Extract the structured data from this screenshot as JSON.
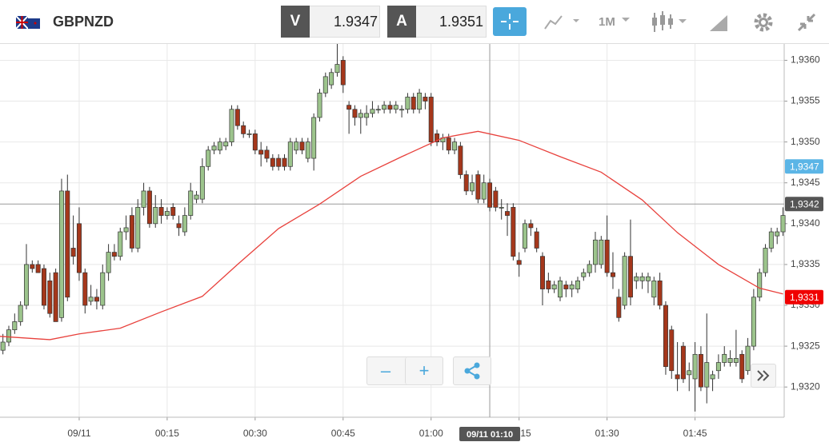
{
  "header": {
    "symbol": "GBPNZD",
    "bid": {
      "letter": "V",
      "price": 1.9347
    },
    "ask": {
      "letter": "A",
      "price": 1.9351
    },
    "timeframe": "1M"
  },
  "chart_data": {
    "type": "candlestick",
    "up_color": "#9cc48c",
    "down_color": "#a5371b",
    "grid": true,
    "xlim": [
      -13.5,
      120.2
    ],
    "ylim": [
      1.93163,
      1.9362
    ],
    "xticks": [
      {
        "value": 0,
        "label": "09/11"
      },
      {
        "value": 15,
        "label": "00:15"
      },
      {
        "value": 30,
        "label": "00:30"
      },
      {
        "value": 45,
        "label": "00:45"
      },
      {
        "value": 60,
        "label": "01:00"
      },
      {
        "value": 75,
        "label": "01:15"
      },
      {
        "value": 90,
        "label": "01:30"
      },
      {
        "value": 105,
        "label": "01:45"
      }
    ],
    "yticks": [
      {
        "value": 1.932,
        "label": "1,9320"
      },
      {
        "value": 1.9325,
        "label": "1,9325"
      },
      {
        "value": 1.933,
        "label": "1,9330"
      },
      {
        "value": 1.9335,
        "label": "1,9335"
      },
      {
        "value": 1.934,
        "label": "1,9340"
      },
      {
        "value": 1.9345,
        "label": "1,9345"
      },
      {
        "value": 1.935,
        "label": "1,9350"
      },
      {
        "value": 1.9355,
        "label": "1,9355"
      },
      {
        "value": 1.936,
        "label": "1,9360"
      }
    ],
    "x": [
      -13,
      -12,
      -11,
      -10,
      -9,
      -8,
      -7,
      -6,
      -5,
      -4,
      -3,
      -2,
      -1,
      0,
      1,
      2,
      3,
      4,
      5,
      6,
      7,
      8,
      9,
      10,
      11,
      12,
      13,
      14,
      15,
      16,
      17,
      18,
      19,
      20,
      21,
      22,
      23,
      24,
      25,
      26,
      27,
      28,
      29,
      30,
      31,
      32,
      33,
      34,
      35,
      36,
      37,
      38,
      39,
      40,
      41,
      42,
      43,
      44,
      45,
      46,
      47,
      48,
      49,
      50,
      51,
      52,
      53,
      54,
      55,
      56,
      57,
      58,
      59,
      60,
      61,
      62,
      63,
      64,
      65,
      66,
      67,
      68,
      69,
      70,
      71,
      72,
      73,
      74,
      75,
      76,
      77,
      78,
      79,
      80,
      81,
      82,
      83,
      84,
      85,
      86,
      87,
      88,
      89,
      90,
      91,
      92,
      93,
      94,
      95,
      96,
      97,
      98,
      99,
      100,
      101,
      102,
      103,
      104,
      105,
      106,
      107,
      108,
      109,
      110,
      111,
      112,
      113,
      114,
      115,
      116,
      117,
      118,
      119,
      120
    ],
    "candles": [
      [
        1.93245,
        1.93265,
        1.9324,
        1.93255
      ],
      [
        1.93255,
        1.93275,
        1.9325,
        1.9327
      ],
      [
        1.9327,
        1.9329,
        1.93265,
        1.9328
      ],
      [
        1.9328,
        1.93305,
        1.93275,
        1.933
      ],
      [
        1.933,
        1.93375,
        1.93295,
        1.9335
      ],
      [
        1.9335,
        1.93355,
        1.9334,
        1.93345
      ],
      [
        1.9335,
        1.93355,
        1.9334,
        1.9334
      ],
      [
        1.93345,
        1.9335,
        1.93295,
        1.933
      ],
      [
        1.9333,
        1.9334,
        1.93285,
        1.9329
      ],
      [
        1.9334,
        1.93345,
        1.9328,
        1.9328
      ],
      [
        1.93285,
        1.93455,
        1.9328,
        1.9344
      ],
      [
        1.9344,
        1.9346,
        1.93305,
        1.9331
      ],
      [
        1.9337,
        1.9341,
        1.9335,
        1.9336
      ],
      [
        1.934,
        1.9342,
        1.9333,
        1.9334
      ],
      [
        1.9334,
        1.93345,
        1.9329,
        1.933
      ],
      [
        1.93305,
        1.93325,
        1.933,
        1.9331
      ],
      [
        1.9331,
        1.9332,
        1.93295,
        1.93305
      ],
      [
        1.933,
        1.9335,
        1.93295,
        1.9334
      ],
      [
        1.9334,
        1.93375,
        1.9333,
        1.93365
      ],
      [
        1.93365,
        1.93375,
        1.93355,
        1.9336
      ],
      [
        1.9336,
        1.93395,
        1.93355,
        1.9339
      ],
      [
        1.9339,
        1.9341,
        1.9338,
        1.93395
      ],
      [
        1.9341,
        1.9342,
        1.93365,
        1.9337
      ],
      [
        1.9337,
        1.9343,
        1.93365,
        1.9342
      ],
      [
        1.9342,
        1.9345,
        1.9341,
        1.9344
      ],
      [
        1.9344,
        1.93445,
        1.93395,
        1.934
      ],
      [
        1.934,
        1.93435,
        1.93395,
        1.9342
      ],
      [
        1.9342,
        1.9343,
        1.934,
        1.9341
      ],
      [
        1.9341,
        1.9342,
        1.93405,
        1.93415
      ],
      [
        1.9342,
        1.93425,
        1.93405,
        1.9341
      ],
      [
        1.934,
        1.9341,
        1.93385,
        1.93395
      ],
      [
        1.9339,
        1.9342,
        1.93385,
        1.9341
      ],
      [
        1.9341,
        1.9345,
        1.93405,
        1.9344
      ],
      [
        1.9343,
        1.9344,
        1.93425,
        1.93435
      ],
      [
        1.9343,
        1.9348,
        1.93425,
        1.9347
      ],
      [
        1.9347,
        1.93495,
        1.93465,
        1.9349
      ],
      [
        1.9349,
        1.935,
        1.93485,
        1.93495
      ],
      [
        1.9349,
        1.93505,
        1.93485,
        1.935
      ],
      [
        1.93495,
        1.93505,
        1.9349,
        1.935
      ],
      [
        1.935,
        1.93545,
        1.93495,
        1.9354
      ],
      [
        1.9354,
        1.93545,
        1.93515,
        1.9352
      ],
      [
        1.9352,
        1.93525,
        1.93505,
        1.9351
      ],
      [
        1.9351,
        1.93515,
        1.93505,
        1.9351
      ],
      [
        1.9351,
        1.93515,
        1.93485,
        1.9349
      ],
      [
        1.9349,
        1.935,
        1.9347,
        1.93485
      ],
      [
        1.9349,
        1.93495,
        1.93475,
        1.9348
      ],
      [
        1.9348,
        1.93485,
        1.93465,
        1.9347
      ],
      [
        1.9348,
        1.93485,
        1.93465,
        1.9347
      ],
      [
        1.9348,
        1.93485,
        1.93465,
        1.9347
      ],
      [
        1.9347,
        1.93505,
        1.93465,
        1.935
      ],
      [
        1.9349,
        1.93505,
        1.93485,
        1.935
      ],
      [
        1.935,
        1.93505,
        1.93485,
        1.9349
      ],
      [
        1.9348,
        1.93505,
        1.93475,
        1.935
      ],
      [
        1.9348,
        1.93535,
        1.93465,
        1.9353
      ],
      [
        1.9353,
        1.93565,
        1.93525,
        1.9356
      ],
      [
        1.9356,
        1.93585,
        1.93555,
        1.9358
      ],
      [
        1.9357,
        1.9359,
        1.93565,
        1.93585
      ],
      [
        1.93585,
        1.9362,
        1.9358,
        1.93595
      ],
      [
        1.936,
        1.93605,
        1.9356,
        1.9357
      ],
      [
        1.93545,
        1.9355,
        1.9351,
        1.9354
      ],
      [
        1.9354,
        1.93545,
        1.9352,
        1.9353
      ],
      [
        1.9353,
        1.9354,
        1.9351,
        1.93535
      ],
      [
        1.9353,
        1.93545,
        1.9352,
        1.93535
      ],
      [
        1.93535,
        1.9355,
        1.9353,
        1.9354
      ],
      [
        1.9354,
        1.93545,
        1.93535,
        1.9354
      ],
      [
        1.9354,
        1.9355,
        1.93535,
        1.93545
      ],
      [
        1.93545,
        1.9355,
        1.93535,
        1.9354
      ],
      [
        1.9354,
        1.9355,
        1.93535,
        1.93545
      ],
      [
        1.9354,
        1.93545,
        1.9353,
        1.9354
      ],
      [
        1.9354,
        1.9356,
        1.93535,
        1.93555
      ],
      [
        1.93555,
        1.9356,
        1.93535,
        1.9354
      ],
      [
        1.9354,
        1.93565,
        1.93535,
        1.9356
      ],
      [
        1.93555,
        1.9356,
        1.9354,
        1.9355
      ],
      [
        1.93555,
        1.9356,
        1.93495,
        1.935
      ],
      [
        1.9351,
        1.93515,
        1.93495,
        1.935
      ],
      [
        1.935,
        1.9351,
        1.9349,
        1.93505
      ],
      [
        1.93505,
        1.9351,
        1.93485,
        1.9349
      ],
      [
        1.9349,
        1.93505,
        1.93485,
        1.935
      ],
      [
        1.93495,
        1.935,
        1.93455,
        1.9346
      ],
      [
        1.9346,
        1.93465,
        1.93435,
        1.9344
      ],
      [
        1.9344,
        1.9346,
        1.93435,
        1.9345
      ],
      [
        1.9346,
        1.93465,
        1.93425,
        1.9343
      ],
      [
        1.9343,
        1.9346,
        1.93425,
        1.9345
      ],
      [
        1.9345,
        1.93455,
        1.93415,
        1.9342
      ],
      [
        1.9344,
        1.93445,
        1.93415,
        1.9342
      ],
      [
        1.9342,
        1.9343,
        1.93405,
        1.9342
      ],
      [
        1.93415,
        1.93425,
        1.93385,
        1.9341
      ],
      [
        1.9342,
        1.93425,
        1.93355,
        1.9336
      ],
      [
        1.93355,
        1.93365,
        1.93335,
        1.9335
      ],
      [
        1.9337,
        1.93405,
        1.93365,
        1.934
      ],
      [
        1.934,
        1.93405,
        1.93385,
        1.93395
      ],
      [
        1.9339,
        1.93395,
        1.93365,
        1.9337
      ],
      [
        1.9336,
        1.93365,
        1.933,
        1.9332
      ],
      [
        1.9333,
        1.9334,
        1.93315,
        1.9332
      ],
      [
        1.9332,
        1.9333,
        1.93315,
        1.93325
      ],
      [
        1.9331,
        1.93335,
        1.93305,
        1.9333
      ],
      [
        1.93325,
        1.9333,
        1.9331,
        1.9332
      ],
      [
        1.9332,
        1.9333,
        1.9331,
        1.93325
      ],
      [
        1.9332,
        1.93335,
        1.93315,
        1.9333
      ],
      [
        1.93335,
        1.93345,
        1.9333,
        1.9334
      ],
      [
        1.9334,
        1.93355,
        1.93335,
        1.9335
      ],
      [
        1.9335,
        1.9339,
        1.9334,
        1.9338
      ],
      [
        1.9335,
        1.93385,
        1.93345,
        1.9338
      ],
      [
        1.9338,
        1.9341,
        1.93335,
        1.9334
      ],
      [
        1.9334,
        1.93365,
        1.9332,
        1.93335
      ],
      [
        1.9331,
        1.9332,
        1.9328,
        1.93285
      ],
      [
        1.933,
        1.93365,
        1.93295,
        1.9336
      ],
      [
        1.9336,
        1.93405,
        1.933,
        1.9331
      ],
      [
        1.9333,
        1.9334,
        1.9332,
        1.93335
      ],
      [
        1.9333,
        1.9334,
        1.9332,
        1.93335
      ],
      [
        1.9333,
        1.9334,
        1.93315,
        1.93335
      ],
      [
        1.9331,
        1.93335,
        1.933,
        1.9333
      ],
      [
        1.9333,
        1.9334,
        1.93295,
        1.933
      ],
      [
        1.933,
        1.93305,
        1.93215,
        1.93225
      ],
      [
        1.9327,
        1.93275,
        1.9321,
        1.9322
      ],
      [
        1.93215,
        1.93255,
        1.93195,
        1.9321
      ],
      [
        1.9325,
        1.93255,
        1.93205,
        1.9321
      ],
      [
        1.93215,
        1.9323,
        1.93195,
        1.9322
      ],
      [
        1.9321,
        1.93255,
        1.9317,
        1.9324
      ],
      [
        1.9324,
        1.9325,
        1.93195,
        1.932
      ],
      [
        1.932,
        1.9329,
        1.9318,
        1.9323
      ],
      [
        1.9321,
        1.9322,
        1.93195,
        1.93215
      ],
      [
        1.9322,
        1.9324,
        1.9321,
        1.9323
      ],
      [
        1.9323,
        1.9325,
        1.93225,
        1.9324
      ],
      [
        1.9323,
        1.93245,
        1.93225,
        1.93235
      ],
      [
        1.9323,
        1.9327,
        1.93225,
        1.93235
      ],
      [
        1.9324,
        1.93245,
        1.93205,
        1.9321
      ],
      [
        1.9322,
        1.9326,
        1.93215,
        1.9325
      ],
      [
        1.9325,
        1.9332,
        1.93245,
        1.9331
      ],
      [
        1.9331,
        1.93345,
        1.93305,
        1.9334
      ],
      [
        1.9334,
        1.93375,
        1.93335,
        1.9337
      ],
      [
        1.9337,
        1.93395,
        1.93365,
        1.9339
      ],
      [
        1.93385,
        1.93395,
        1.93375,
        1.9339
      ],
      [
        1.9339,
        1.9342,
        1.93385,
        1.9341
      ]
    ],
    "ma": {
      "color": "#e8413c",
      "x": [
        -13.5,
        -5,
        0,
        7,
        14,
        21,
        27,
        34,
        41,
        48,
        55,
        62,
        68,
        75,
        82,
        89,
        96,
        102,
        109,
        116,
        120
      ],
      "values": [
        1.93262,
        1.93258,
        1.93265,
        1.93272,
        1.93292,
        1.93311,
        1.9335,
        1.93394,
        1.93424,
        1.93458,
        1.93482,
        1.93505,
        1.93513,
        1.93502,
        1.93482,
        1.93463,
        1.93429,
        1.93389,
        1.9335,
        1.93321,
        1.93314
      ]
    },
    "crosshair": {
      "x": {
        "value": 70,
        "label": "09/11 01:10"
      },
      "y": {
        "value": 1.93424,
        "label": "1,9342"
      }
    },
    "price_badges": [
      {
        "value": 1.9347,
        "label": "1,9347",
        "color": "#5bb5e6"
      },
      {
        "value": 1.9331,
        "label": "1,9331",
        "color": "#f00000"
      }
    ]
  }
}
